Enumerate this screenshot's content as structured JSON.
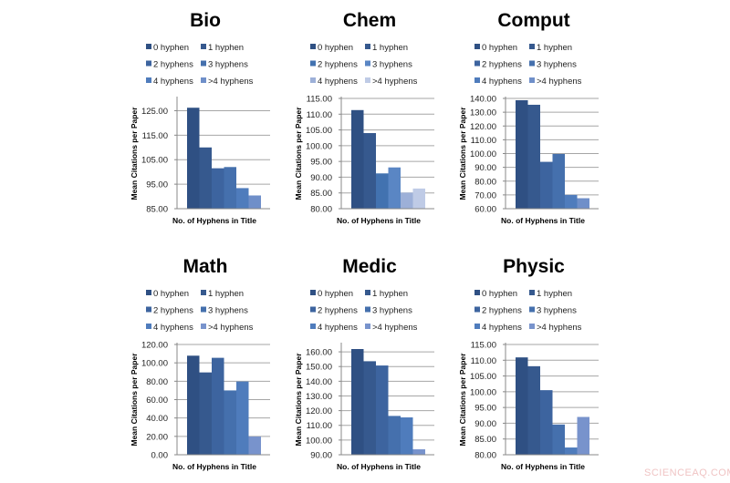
{
  "watermark": "SCIENCEAQ.COM",
  "chart_data": [
    {
      "type": "bar",
      "title": "Bio",
      "xlabel": "No. of Hyphens in Title",
      "ylabel": "Mean Citations per Paper",
      "categories": [
        "0 hyphen",
        "1 hyphen",
        "2 hyphens",
        "3 hyphens",
        "4 hyphens",
        ">4 hyphens"
      ],
      "values": [
        126.2,
        110.0,
        101.5,
        102.0,
        93.4,
        90.4
      ],
      "ylim": [
        85,
        130
      ],
      "yticks": [
        "85.00",
        "95.00",
        "105.00",
        "115.00",
        "125.00"
      ],
      "ytick_values": [
        85,
        95,
        105,
        115,
        125
      ],
      "colors": [
        "#2f5083",
        "#36598e",
        "#3d649f",
        "#4570ad",
        "#4f7cbc",
        "#6f8fc9"
      ],
      "legend": "top",
      "grid": true
    },
    {
      "type": "bar",
      "title": "Chem",
      "xlabel": "No. of Hyphens in Title",
      "ylabel": "Mean Citations per Paper",
      "categories": [
        "0 hyphen",
        "1 hyphen",
        "2 hyphens",
        "3 hyphens",
        "4 hyphens",
        ">4 hyphens"
      ],
      "values": [
        111.3,
        104.0,
        91.2,
        93.1,
        85.1,
        86.4
      ],
      "ylim": [
        80,
        115
      ],
      "yticks": [
        "80.00",
        "85.00",
        "90.00",
        "95.00",
        "100.00",
        "105.00",
        "110.00",
        "115.00"
      ],
      "ytick_values": [
        80,
        85,
        90,
        95,
        100,
        105,
        110,
        115
      ],
      "colors": [
        "#2f5083",
        "#36598e",
        "#4272b0",
        "#5a86c4",
        "#9db0d8",
        "#bfcbe6"
      ],
      "legend": "top",
      "grid": true
    },
    {
      "type": "bar",
      "title": "Comput",
      "xlabel": "No. of Hyphens in Title",
      "ylabel": "Mean Citations per Paper",
      "categories": [
        "0 hyphen",
        "1 hyphen",
        "2 hyphens",
        "3 hyphens",
        "4 hyphens",
        ">4 hyphens"
      ],
      "values": [
        138.7,
        135.4,
        94.0,
        99.7,
        70.0,
        67.6
      ],
      "ylim": [
        60,
        140
      ],
      "yticks": [
        "60.00",
        "70.00",
        "80.00",
        "90.00",
        "100.00",
        "110.00",
        "120.00",
        "130.00",
        "140.00"
      ],
      "ytick_values": [
        60,
        70,
        80,
        90,
        100,
        110,
        120,
        130,
        140
      ],
      "colors": [
        "#2f5083",
        "#36598e",
        "#3d649f",
        "#4570ad",
        "#4f7cbc",
        "#6f8fc9"
      ],
      "legend": "top",
      "grid": true
    },
    {
      "type": "bar",
      "title": "Math",
      "xlabel": "No. of Hyphens in Title",
      "ylabel": "Mean Citations per Paper",
      "categories": [
        "0 hyphen",
        "1 hyphen",
        "2 hyphens",
        "3 hyphens",
        "4 hyphens",
        ">4 hyphens"
      ],
      "values": [
        107.8,
        89.6,
        105.5,
        70.0,
        79.7,
        19.8
      ],
      "ylim": [
        0,
        120
      ],
      "yticks": [
        "0.00",
        "20.00",
        "40.00",
        "60.00",
        "80.00",
        "100.00",
        "120.00"
      ],
      "ytick_values": [
        0,
        20,
        40,
        60,
        80,
        100,
        120
      ],
      "colors": [
        "#2f5083",
        "#36598e",
        "#3d649f",
        "#4570ad",
        "#4f7cbc",
        "#7893cc"
      ],
      "legend": "top",
      "grid": true
    },
    {
      "type": "bar",
      "title": "Medic",
      "xlabel": "No. of Hyphens in Title",
      "ylabel": "Mean Citations per Paper",
      "categories": [
        "0 hyphen",
        "1 hyphen",
        "2 hyphens",
        "3 hyphens",
        "4 hyphens",
        ">4 hyphens"
      ],
      "values": [
        161.9,
        153.6,
        150.7,
        116.4,
        115.4,
        93.7
      ],
      "ylim": [
        90,
        165
      ],
      "yticks": [
        "90.00",
        "100.00",
        "110.00",
        "120.00",
        "130.00",
        "140.00",
        "150.00",
        "160.00"
      ],
      "ytick_values": [
        90,
        100,
        110,
        120,
        130,
        140,
        150,
        160
      ],
      "colors": [
        "#2f5083",
        "#36598e",
        "#3d649f",
        "#4570ad",
        "#4f7cbc",
        "#7893cc"
      ],
      "legend": "top",
      "grid": true
    },
    {
      "type": "bar",
      "title": "Physic",
      "xlabel": "No. of Hyphens in Title",
      "ylabel": "Mean Citations per Paper",
      "categories": [
        "0 hyphen",
        "1 hyphen",
        "2 hyphens",
        "3 hyphens",
        "4 hyphens",
        ">4 hyphens"
      ],
      "values": [
        110.9,
        108.1,
        100.5,
        89.6,
        82.3,
        92.0
      ],
      "ylim": [
        80,
        115
      ],
      "yticks": [
        "80.00",
        "85.00",
        "90.00",
        "95.00",
        "100.00",
        "105.00",
        "110.00",
        "115.00"
      ],
      "ytick_values": [
        80,
        85,
        90,
        95,
        100,
        105,
        110,
        115
      ],
      "colors": [
        "#2f5083",
        "#36598e",
        "#3d649f",
        "#4570ad",
        "#4f7cbc",
        "#7893cc"
      ],
      "legend": "top",
      "grid": true
    }
  ]
}
